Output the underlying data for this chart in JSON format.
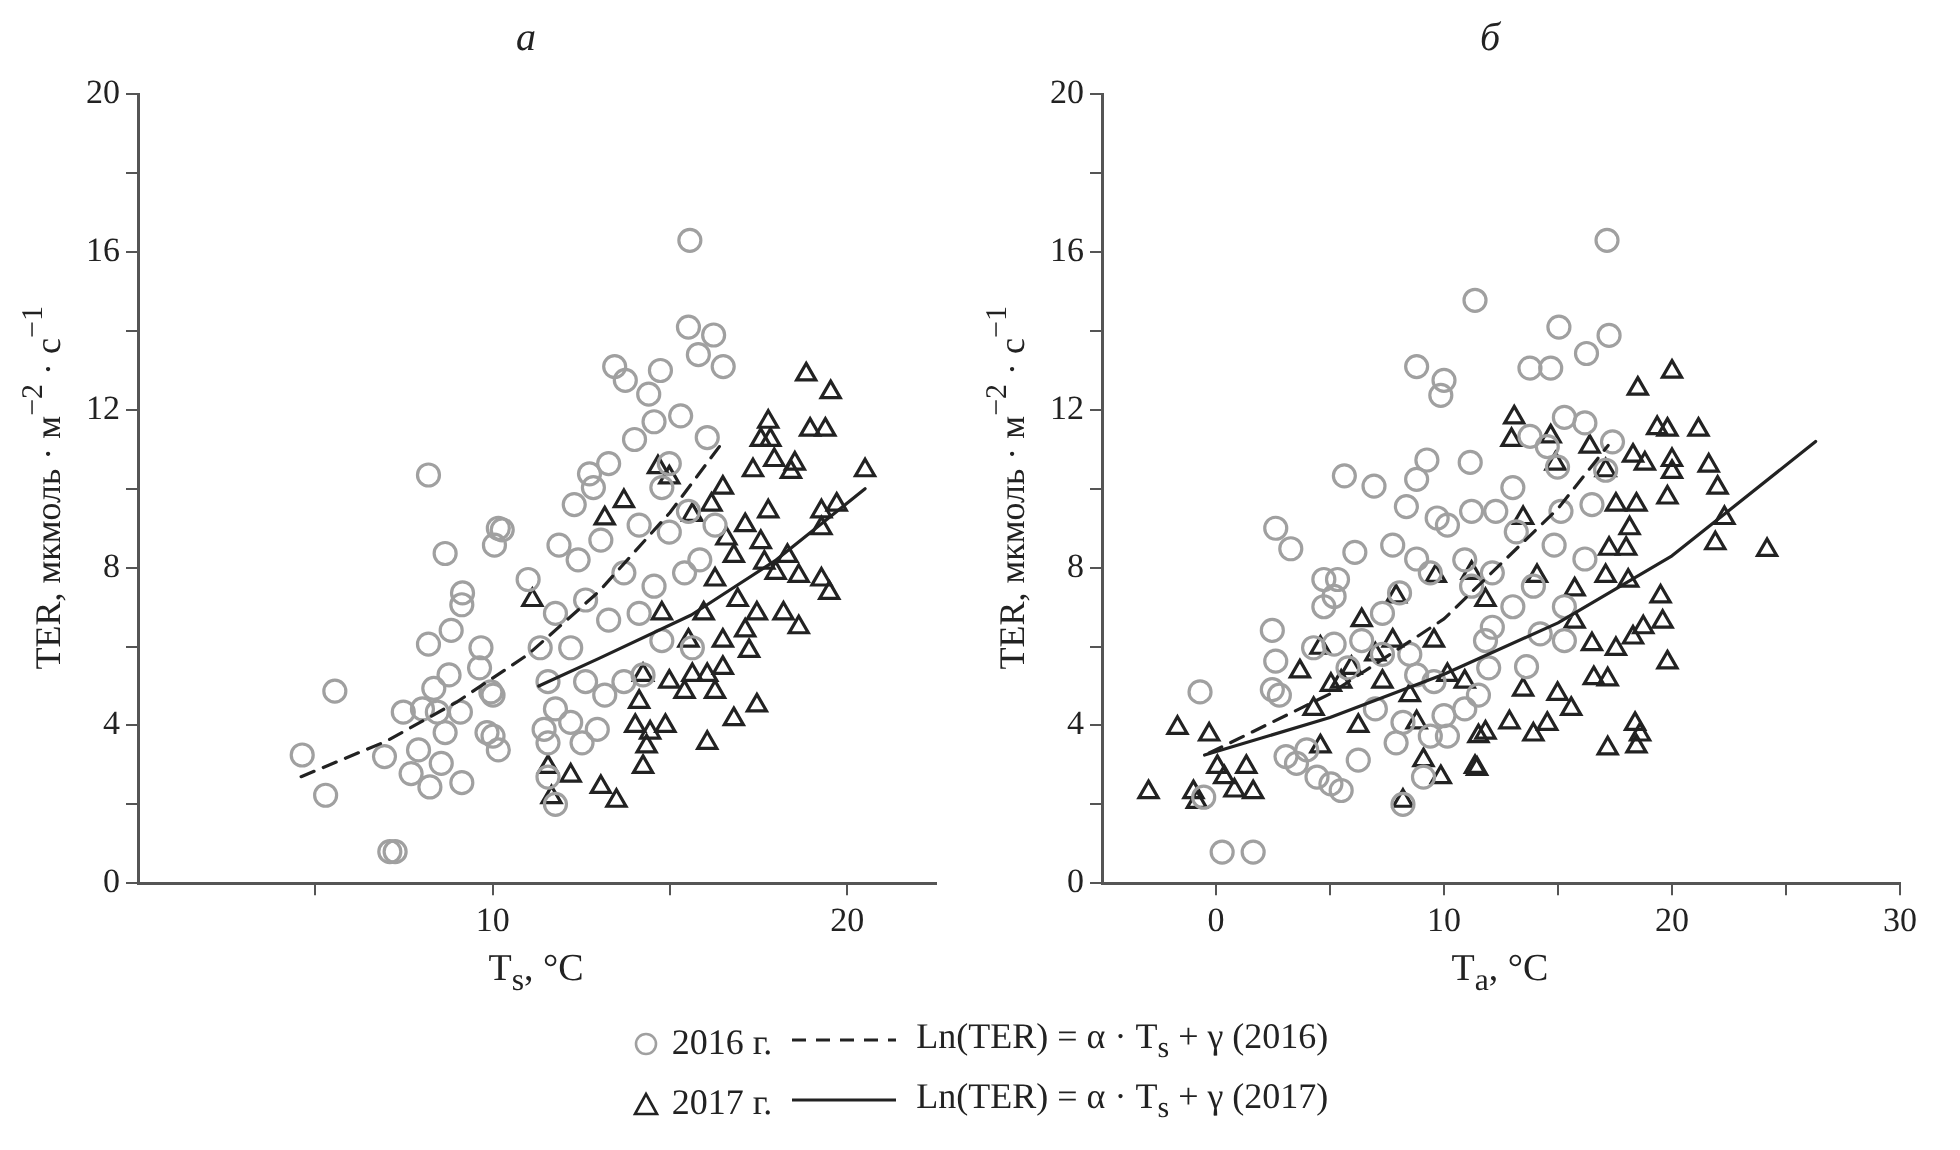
{
  "chart_data": [
    {
      "type": "scatter",
      "title": "а",
      "xlabel": "T$_{s}$, °C",
      "ylabel": "TER, мкмоль · м$^{−2}$ · с$^{−1}$",
      "xlim": [
        0,
        22.5
      ],
      "ylim": [
        0,
        20
      ],
      "xticks": [
        {
          "value": 5,
          "label": null
        },
        10,
        {
          "value": 15,
          "label": null
        },
        20
      ],
      "yticks": [
        0,
        {
          "value": 2,
          "label": null
        },
        4,
        {
          "value": 6,
          "label": null
        },
        8,
        {
          "value": 10,
          "label": null
        },
        12,
        {
          "value": 14,
          "label": null
        },
        16,
        {
          "value": 18,
          "label": null
        },
        20
      ],
      "legend": "bottom",
      "series": [
        {
          "name": "2016 г.",
          "color": "#a0a0a0",
          "marker": "circle",
          "x": [
            4.63,
            5.29,
            5.55,
            7.1,
            7.25,
            8.19,
            8.66,
            9.15,
            9.13,
            8.83,
            8.19,
            9.67,
            10.05,
            10.27,
            9.63,
            9.95,
            6.95,
            7.48,
            7.91,
            7.7,
            8.23,
            8.55,
            9.13,
            8.66,
            9.84,
            10.16,
            8.34,
            8.77,
            9.09,
            8.02,
            8.44,
            15.56,
            15.52,
            16.23,
            15.8,
            16.5,
            13.44,
            13.74,
            14.73,
            14.4,
            14.55,
            15.3,
            16.05,
            14.0,
            13.27,
            12.73,
            12.84,
            14.77,
            15.52,
            10.16,
            12.3,
            11.87,
            11.0,
            12.41,
            13.05,
            14.13,
            14.98,
            15.84,
            13.7,
            14.55,
            12.62,
            11.77,
            13.27,
            14.13,
            14.77,
            15.63,
            12.2,
            11.34,
            11.56,
            12.62,
            13.7,
            13.16,
            11.77,
            12.2,
            11.45,
            12.95,
            11.56,
            12.52,
            10.01,
            10.01,
            11.56,
            11.77,
            14.24,
            15.41,
            16.27,
            14.98
          ],
          "values": [
            3.25,
            2.23,
            4.87,
            0.8,
            0.8,
            10.35,
            8.36,
            7.36,
            7.06,
            6.41,
            6.06,
            5.97,
            8.57,
            8.96,
            5.46,
            4.85,
            3.21,
            4.34,
            3.38,
            2.78,
            2.44,
            3.04,
            2.55,
            3.82,
            3.82,
            3.38,
            4.94,
            5.28,
            4.34,
            4.42,
            4.34,
            16.3,
            14.1,
            13.9,
            13.4,
            13.1,
            13.1,
            12.75,
            13.0,
            12.4,
            11.7,
            11.85,
            11.3,
            11.25,
            10.64,
            10.38,
            10.03,
            10.03,
            9.43,
            9.0,
            9.6,
            8.57,
            7.7,
            8.2,
            8.7,
            9.08,
            8.9,
            8.2,
            7.87,
            7.53,
            7.18,
            6.84,
            6.67,
            6.84,
            6.15,
            5.97,
            5.97,
            5.97,
            5.11,
            5.11,
            5.11,
            4.77,
            4.42,
            4.08,
            3.9,
            3.9,
            3.56,
            3.56,
            4.77,
            3.73,
            2.69,
            2.0,
            5.28,
            7.87,
            9.08,
            10.64
          ]
        },
        {
          "name": "2017 г.",
          "color": "#222222",
          "marker": "triangle",
          "x": [
            18.84,
            19.53,
            17.77,
            18.95,
            19.38,
            17.56,
            17.83,
            17.34,
            17.94,
            18.52,
            18.41,
            20.5,
            16.49,
            16.17,
            15.63,
            14.66,
            13.7,
            17.77,
            19.27,
            19.7,
            19.27,
            17.12,
            16.59,
            17.56,
            16.8,
            17.66,
            18.31,
            17.98,
            18.63,
            19.27,
            19.49,
            16.27,
            15.95,
            16.91,
            17.45,
            18.2,
            18.63,
            17.12,
            16.49,
            17.23,
            15.52,
            14.77,
            16.05,
            16.49,
            15.63,
            14.98,
            15.41,
            16.27,
            14.24,
            14.13,
            14.02,
            14.87,
            14.44,
            14.34,
            14.24,
            16.05,
            16.8,
            17.45,
            11.56,
            12.2,
            11.66,
            13.05,
            13.49,
            11.12,
            13.16,
            14.98
          ],
          "values": [
            12.9,
            12.45,
            11.7,
            11.5,
            11.5,
            11.24,
            11.24,
            10.47,
            10.73,
            10.64,
            10.43,
            10.47,
            10.03,
            9.6,
            9.34,
            10.55,
            9.69,
            9.43,
            9.43,
            9.6,
            9.0,
            9.08,
            8.74,
            8.65,
            8.3,
            8.13,
            8.3,
            7.87,
            7.79,
            7.7,
            7.36,
            7.7,
            6.84,
            7.18,
            6.84,
            6.84,
            6.49,
            6.41,
            6.15,
            5.89,
            6.15,
            6.84,
            5.28,
            5.46,
            5.28,
            5.11,
            4.85,
            4.85,
            5.28,
            4.6,
            3.99,
            3.99,
            3.82,
            3.47,
            2.95,
            3.56,
            4.16,
            4.51,
            2.95,
            2.73,
            2.18,
            2.44,
            2.09,
            7.18,
            9.25,
            10.29
          ]
        },
        {
          "type": "line",
          "name": "Ln(TER) = α · T$_{s}$ + γ (2016)",
          "color": "#222222",
          "marker": "none",
          "line_style": "dashed",
          "x": [
            4.6,
            7,
            9,
            11,
            13,
            15,
            16.5
          ],
          "values": [
            2.7,
            3.6,
            4.6,
            5.8,
            7.4,
            9.4,
            11.2
          ]
        },
        {
          "type": "line",
          "name": "Ln(TER) = α · T$_{s}$ + γ (2017)",
          "color": "#222222",
          "marker": "none",
          "line_style": "solid",
          "x": [
            11.3,
            13,
            15.6,
            18,
            20.5
          ],
          "values": [
            5.0,
            5.7,
            6.8,
            8.2,
            10.0
          ]
        }
      ]
    },
    {
      "type": "scatter",
      "title": "б",
      "xlabel": "T$_{a}$, °C",
      "ylabel": "TER, мкмоль · м$^{−2}$ · с$^{−1}$",
      "xlim": [
        -5,
        30
      ],
      "ylim": [
        0,
        20
      ],
      "xticks": [
        0,
        {
          "value": 5,
          "label": null
        },
        10,
        {
          "value": 15,
          "label": null
        },
        20,
        {
          "value": 25,
          "label": null
        },
        30
      ],
      "yticks": [
        0,
        {
          "value": 2,
          "label": null
        },
        4,
        {
          "value": 6,
          "label": null
        },
        8,
        {
          "value": 10,
          "label": null
        },
        12,
        {
          "value": 14,
          "label": null
        },
        16,
        {
          "value": 18,
          "label": null
        },
        20
      ],
      "series": [
        {
          "color": "#a0a0a0",
          "marker": "circle",
          "x": [
            11.36,
            8.8,
            10.0,
            9.86,
            9.25,
            11.15,
            5.63,
            6.93,
            8.8,
            8.35,
            2.62,
            3.28,
            6.09,
            9.7,
            10.15,
            11.21,
            7.75,
            8.8,
            4.73,
            5.33,
            5.18,
            4.73,
            2.47,
            2.62,
            2.47,
            2.78,
            -0.7,
            6.39,
            7.3,
            8.05,
            9.4,
            10.91,
            4.28,
            5.18,
            5.79,
            7.3,
            8.5,
            9.56,
            8.8,
            6.99,
            8.2,
            10.0,
            10.91,
            7.9,
            9.4,
            10.15,
            3.07,
            3.53,
            3.98,
            4.43,
            5.04,
            5.49,
            6.24,
            9.1,
            8.2,
            -0.54,
            0.27,
            1.63,
            11.21,
            11.82,
            17.15,
            15.04,
            17.24,
            16.25,
            13.77,
            14.68,
            15.28,
            16.18,
            17.39,
            13.77,
            14.53,
            14.98,
            17.09,
            13.02,
            12.27,
            15.13,
            16.49,
            13.17,
            14.83,
            16.18,
            12.12,
            13.92,
            13.02,
            15.28,
            12.12,
            14.22,
            15.28,
            13.62,
            11.96,
            11.51
          ],
          "values": [
            14.78,
            13.1,
            12.75,
            12.37,
            10.73,
            10.67,
            10.33,
            10.07,
            10.24,
            9.55,
            9.0,
            8.48,
            8.39,
            9.26,
            9.08,
            9.43,
            8.57,
            8.22,
            7.7,
            7.7,
            7.27,
            7.01,
            6.41,
            5.63,
            4.91,
            4.77,
            4.85,
            6.15,
            6.84,
            7.36,
            7.87,
            8.2,
            5.97,
            6.06,
            5.46,
            5.8,
            5.8,
            5.11,
            5.28,
            4.42,
            4.08,
            4.25,
            4.42,
            3.56,
            3.73,
            3.73,
            3.21,
            3.04,
            3.38,
            2.69,
            2.52,
            2.35,
            3.12,
            2.69,
            2.0,
            2.18,
            0.79,
            0.79,
            7.53,
            6.15,
            16.3,
            14.1,
            13.89,
            13.43,
            13.06,
            13.06,
            11.81,
            11.67,
            11.19,
            11.33,
            11.07,
            10.55,
            10.47,
            10.03,
            9.43,
            9.43,
            9.6,
            8.91,
            8.57,
            8.22,
            7.87,
            7.53,
            7.01,
            7.01,
            6.49,
            6.32,
            6.15,
            5.49,
            5.46,
            4.77
          ]
        },
        {
          "color": "#222222",
          "marker": "triangle",
          "x": [
            -2.96,
            -1.69,
            -0.3,
            -0.99,
            -0.84,
            0.06,
            0.36,
            0.81,
            1.33,
            1.63,
            3.68,
            4.58,
            5.04,
            4.28,
            4.58,
            6.39,
            5.94,
            6.24,
            7.9,
            7.75,
            7.3,
            8.5,
            8.8,
            9.1,
            9.86,
            8.2,
            9.64,
            9.56,
            10.15,
            10.91,
            11.36,
            11.21,
            11.82,
            11.51,
            5.49,
            6.99,
            13.08,
            12.96,
            14.68,
            16.39,
            14.89,
            20.0,
            18.5,
            19.35,
            19.8,
            21.16,
            18.29,
            18.81,
            20.0,
            20.0,
            21.61,
            17.09,
            22.0,
            19.8,
            22.3,
            21.9,
            24.17,
            18.44,
            17.54,
            18.14,
            17.24,
            17.99,
            13.47,
            14.08,
            17.09,
            18.08,
            19.5,
            15.73,
            19.59,
            15.73,
            18.74,
            18.29,
            16.49,
            17.54,
            19.8,
            16.57,
            17.18,
            13.47,
            14.98,
            15.58,
            12.87,
            14.53,
            13.92,
            11.82,
            18.38,
            18.6,
            18.44,
            17.18,
            11.45
          ],
          "values": [
            2.31,
            3.94,
            3.77,
            2.31,
            2.06,
            2.95,
            2.69,
            2.35,
            2.95,
            2.31,
            5.37,
            5.97,
            5.03,
            4.42,
            3.47,
            6.67,
            5.46,
            3.99,
            7.27,
            6.15,
            5.11,
            4.77,
            4.08,
            3.12,
            2.69,
            2.09,
            7.79,
            6.15,
            5.28,
            5.11,
            2.95,
            7.87,
            7.18,
            3.73,
            5.11,
            5.8,
            11.81,
            11.24,
            11.33,
            11.07,
            10.64,
            12.97,
            12.54,
            11.54,
            11.5,
            11.5,
            10.84,
            10.64,
            10.73,
            10.43,
            10.59,
            10.47,
            10.03,
            9.78,
            9.26,
            8.62,
            8.45,
            9.6,
            9.6,
            9.0,
            8.48,
            8.48,
            9.26,
            7.79,
            7.79,
            7.67,
            7.27,
            7.45,
            6.63,
            6.63,
            6.49,
            6.23,
            6.06,
            5.94,
            5.6,
            5.2,
            5.17,
            4.91,
            4.8,
            4.42,
            4.08,
            4.04,
            3.77,
            3.82,
            4.04,
            3.77,
            3.47,
            3.42,
            2.9
          ]
        },
        {
          "type": "line",
          "color": "#222222",
          "marker": "none",
          "line_style": "dashed",
          "x": [
            -0.3,
            5,
            10,
            15,
            17.2
          ],
          "values": [
            3.3,
            4.8,
            6.7,
            9.5,
            11.1
          ]
        },
        {
          "type": "line",
          "color": "#222222",
          "marker": "none",
          "line_style": "solid",
          "x": [
            -0.5,
            5,
            10,
            15,
            20,
            26.3
          ],
          "values": [
            3.25,
            4.2,
            5.3,
            6.6,
            8.3,
            11.2
          ]
        }
      ]
    }
  ]
}
